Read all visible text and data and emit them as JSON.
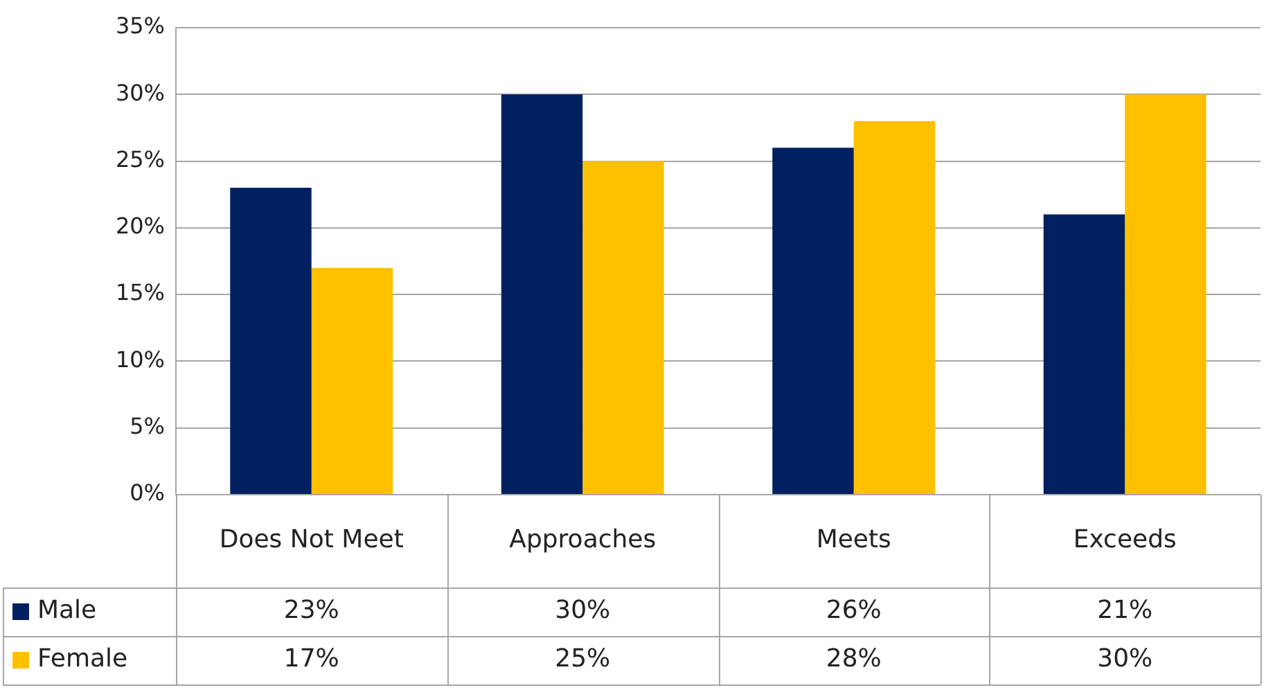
{
  "chart_data": {
    "type": "bar",
    "categories": [
      "Does Not Meet",
      "Approaches",
      "Meets",
      "Exceeds"
    ],
    "series": [
      {
        "name": "Male",
        "color": "#002060",
        "values": [
          23,
          30,
          26,
          21
        ],
        "value_labels": [
          "23%",
          "30%",
          "26%",
          "21%"
        ]
      },
      {
        "name": "Female",
        "color": "#ffc000",
        "values": [
          17,
          25,
          28,
          30
        ],
        "value_labels": [
          "17%",
          "25%",
          "28%",
          "30%"
        ]
      }
    ],
    "ylim": [
      0,
      35
    ],
    "yticks": [
      {
        "value": 0,
        "label": "0%"
      },
      {
        "value": 5,
        "label": "5%"
      },
      {
        "value": 10,
        "label": "10%"
      },
      {
        "value": 15,
        "label": "15%"
      },
      {
        "value": 20,
        "label": "20%"
      },
      {
        "value": 25,
        "label": "25%"
      },
      {
        "value": 30,
        "label": "30%"
      },
      {
        "value": 35,
        "label": "35%"
      }
    ],
    "grid": "y",
    "legend": "bottom"
  }
}
